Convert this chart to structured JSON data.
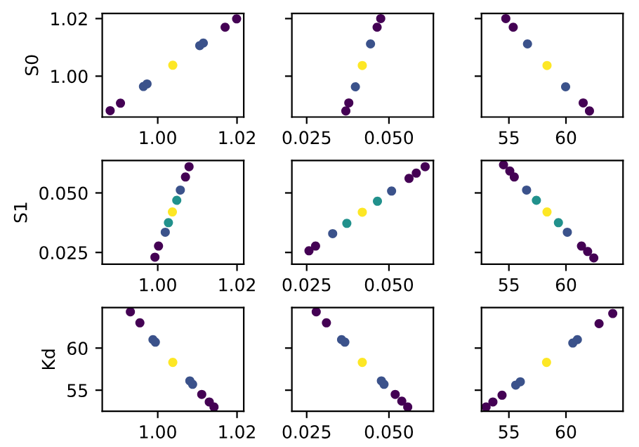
{
  "chart_data": [
    {
      "type": "scatter",
      "ylabel": "S0",
      "marker": "circle",
      "xlim": [
        0.986,
        1.0217
      ],
      "ylim": [
        0.9858,
        1.0218
      ],
      "xticks": [
        {
          "value": 1.0,
          "label": "1.00"
        },
        {
          "value": 1.02,
          "label": "1.02"
        }
      ],
      "yticks": [
        {
          "value": 1.0,
          "label": "1.00"
        },
        {
          "value": 1.02,
          "label": "1.02"
        }
      ],
      "series": [
        {
          "color": "#440154",
          "x": [
            0.988,
            0.9906,
            1.017,
            1.0199
          ],
          "values": [
            0.988,
            0.9906,
            1.017,
            1.0199
          ]
        },
        {
          "color": "#3b528b",
          "x": [
            0.9964,
            0.9973,
            1.0106,
            1.0115
          ],
          "values": [
            0.9964,
            0.9973,
            1.0106,
            1.0115
          ]
        },
        {
          "color": "#fde725",
          "x": [
            1.0038
          ],
          "values": [
            1.0038
          ]
        }
      ]
    },
    {
      "type": "scatter",
      "marker": "circle",
      "tick_labels": "x",
      "xlim": [
        0.0205,
        0.0635
      ],
      "ylim": [
        0.9858,
        1.0218
      ],
      "xticks": [
        {
          "value": 0.025,
          "label": "0.025"
        },
        {
          "value": 0.05,
          "label": "0.050"
        }
      ],
      "yticks": [
        {
          "value": 1.0,
          "label": null
        },
        {
          "value": 1.02,
          "label": null
        }
      ],
      "series": [
        {
          "color": "#440154",
          "x": [
            0.0369,
            0.0378,
            0.0464,
            0.0475
          ],
          "values": [
            0.9879,
            0.9907,
            1.017,
            1.02
          ]
        },
        {
          "color": "#3b528b",
          "x": [
            0.0398,
            0.0444
          ],
          "values": [
            0.9963,
            1.0112
          ]
        },
        {
          "color": "#fde725",
          "x": [
            0.0419
          ],
          "values": [
            1.0037
          ]
        }
      ]
    },
    {
      "type": "scatter",
      "marker": "circle",
      "tick_labels": "x",
      "xlim": [
        52.6,
        65.0
      ],
      "ylim": [
        0.9858,
        1.0218
      ],
      "xticks": [
        55,
        60
      ],
      "yticks": [
        {
          "value": 1.0,
          "label": null
        },
        {
          "value": 1.02,
          "label": null
        }
      ],
      "series": [
        {
          "color": "#440154",
          "x": [
            54.73,
            55.38,
            61.51,
            62.06
          ],
          "values": [
            1.02,
            1.017,
            0.9907,
            0.9879
          ]
        },
        {
          "color": "#3b528b",
          "x": [
            56.63,
            59.97
          ],
          "values": [
            1.0112,
            0.9963
          ]
        },
        {
          "color": "#fde725",
          "x": [
            58.34
          ],
          "values": [
            1.0037
          ]
        }
      ]
    },
    {
      "type": "scatter",
      "ylabel": "S1",
      "marker": "circle",
      "xlim": [
        0.986,
        1.0217
      ],
      "ylim": [
        0.0201,
        0.0636
      ],
      "xticks": [
        {
          "value": 1.0,
          "label": "1.00"
        },
        {
          "value": 1.02,
          "label": "1.02"
        }
      ],
      "yticks": [
        {
          "value": 0.025,
          "label": "0.025"
        },
        {
          "value": 0.05,
          "label": "0.050"
        }
      ],
      "series": [
        {
          "color": "#440154",
          "x": [
            0.9993,
            1.0002,
            1.007,
            1.0079
          ],
          "values": [
            0.023,
            0.0277,
            0.0567,
            0.061
          ]
        },
        {
          "color": "#3b528b",
          "x": [
            1.0019,
            1.0057
          ],
          "values": [
            0.0335,
            0.0512
          ]
        },
        {
          "color": "#21918c",
          "x": [
            1.0027,
            1.0048
          ],
          "values": [
            0.0375,
            0.0469
          ]
        },
        {
          "color": "#fde725",
          "x": [
            1.0037
          ],
          "values": [
            0.042
          ]
        }
      ]
    },
    {
      "type": "scatter",
      "marker": "circle",
      "tick_labels": "x",
      "xlim": [
        0.0205,
        0.0635
      ],
      "ylim": [
        0.0201,
        0.0636
      ],
      "xticks": [
        {
          "value": 0.025,
          "label": "0.025"
        },
        {
          "value": 0.05,
          "label": "0.050"
        }
      ],
      "yticks": [
        {
          "value": 0.025,
          "label": null
        },
        {
          "value": 0.05,
          "label": null
        }
      ],
      "series": [
        {
          "color": "#440154",
          "x": [
            0.0257,
            0.0277,
            0.0561,
            0.0583,
            0.061
          ],
          "values": [
            0.0257,
            0.0277,
            0.0561,
            0.0583,
            0.061
          ]
        },
        {
          "color": "#3b528b",
          "x": [
            0.0329,
            0.0508
          ],
          "values": [
            0.0329,
            0.0508
          ]
        },
        {
          "color": "#21918c",
          "x": [
            0.0372,
            0.0465
          ],
          "values": [
            0.0372,
            0.0465
          ]
        },
        {
          "color": "#fde725",
          "x": [
            0.0419
          ],
          "values": [
            0.0419
          ]
        }
      ]
    },
    {
      "type": "scatter",
      "marker": "circle",
      "tick_labels": "x",
      "xlim": [
        52.6,
        65.0
      ],
      "ylim": [
        0.0201,
        0.0636
      ],
      "xticks": [
        55,
        60
      ],
      "yticks": [
        {
          "value": 0.025,
          "label": null
        },
        {
          "value": 0.05,
          "label": null
        }
      ],
      "series": [
        {
          "color": "#440154",
          "x": [
            54.53,
            55.08,
            55.47,
            61.36,
            61.9,
            62.44
          ],
          "values": [
            0.0618,
            0.0592,
            0.0567,
            0.0277,
            0.0254,
            0.0227
          ]
        },
        {
          "color": "#3b528b",
          "x": [
            56.55,
            60.12
          ],
          "values": [
            0.0512,
            0.0335
          ]
        },
        {
          "color": "#21918c",
          "x": [
            57.41,
            59.34
          ],
          "values": [
            0.0469,
            0.0375
          ]
        },
        {
          "color": "#fde725",
          "x": [
            58.34
          ],
          "values": [
            0.042
          ]
        }
      ]
    },
    {
      "type": "scatter",
      "ylabel": "Kd",
      "marker": "circle",
      "xlim": [
        0.986,
        1.0217
      ],
      "ylim": [
        52.5,
        64.8
      ],
      "xticks": [
        {
          "value": 1.0,
          "label": "1.00"
        },
        {
          "value": 1.02,
          "label": "1.02"
        }
      ],
      "yticks": [
        55,
        60
      ],
      "series": [
        {
          "color": "#440154",
          "x": [
            0.9931,
            0.9955,
            1.0111,
            1.013,
            1.0142
          ],
          "values": [
            64.3,
            63.0,
            54.5,
            53.6,
            53.0
          ]
        },
        {
          "color": "#3b528b",
          "x": [
            0.9988,
            0.9994,
            1.0081,
            1.0088
          ],
          "values": [
            61.0,
            60.7,
            56.1,
            55.7
          ]
        },
        {
          "color": "#fde725",
          "x": [
            1.0038
          ],
          "values": [
            58.3
          ]
        }
      ]
    },
    {
      "type": "scatter",
      "marker": "circle",
      "tick_labels": "x",
      "xlim": [
        0.0205,
        0.0635
      ],
      "ylim": [
        52.5,
        64.8
      ],
      "xticks": [
        {
          "value": 0.025,
          "label": "0.025"
        },
        {
          "value": 0.05,
          "label": "0.050"
        }
      ],
      "yticks": [
        {
          "value": 55,
          "label": null
        },
        {
          "value": 60,
          "label": null
        }
      ],
      "series": [
        {
          "color": "#440154",
          "x": [
            0.0279,
            0.031,
            0.0519,
            0.0539,
            0.0557
          ],
          "values": [
            64.3,
            63.0,
            54.5,
            53.7,
            53.0
          ]
        },
        {
          "color": "#3b528b",
          "x": [
            0.0356,
            0.0366,
            0.0477,
            0.0485
          ],
          "values": [
            61.0,
            60.7,
            56.1,
            55.7
          ]
        },
        {
          "color": "#fde725",
          "x": [
            0.0419
          ],
          "values": [
            58.3
          ]
        }
      ]
    },
    {
      "type": "scatter",
      "marker": "circle",
      "tick_labels": "x",
      "xlim": [
        52.6,
        65.0
      ],
      "ylim": [
        52.5,
        64.8
      ],
      "xticks": [
        55,
        60
      ],
      "yticks": [
        {
          "value": 55,
          "label": null
        },
        {
          "value": 60,
          "label": null
        }
      ],
      "series": [
        {
          "color": "#440154",
          "x": [
            53.0,
            53.6,
            54.4,
            62.9,
            64.1
          ],
          "values": [
            53.0,
            53.6,
            54.4,
            62.9,
            64.1
          ]
        },
        {
          "color": "#3b528b",
          "x": [
            55.6,
            56.0,
            60.6,
            61.0
          ],
          "values": [
            55.6,
            56.0,
            60.6,
            61.0
          ]
        },
        {
          "color": "#fde725",
          "x": [
            58.3
          ],
          "values": [
            58.3
          ]
        }
      ]
    }
  ]
}
